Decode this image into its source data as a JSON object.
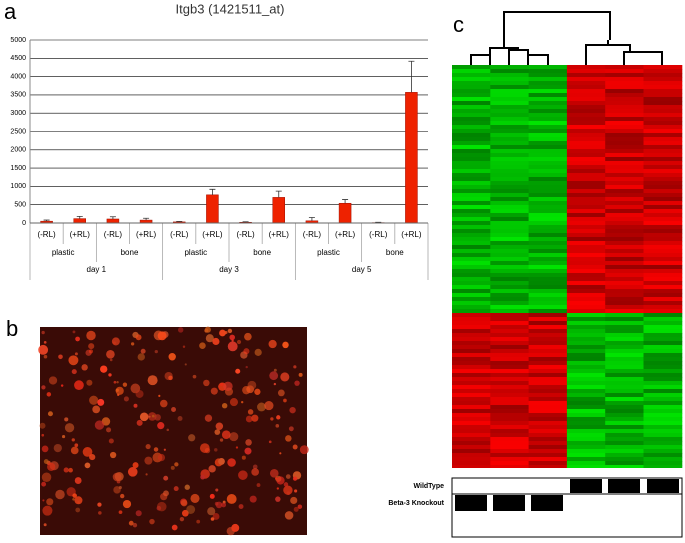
{
  "chart_data": {
    "type": "bar",
    "title": "Itgb3 (1421511_at)",
    "categories": [
      "(-RL)",
      "(+RL)",
      "(-RL)",
      "(+RL)",
      "(-RL)",
      "(+RL)",
      "(-RL)",
      "(+RL)",
      "(-RL)",
      "(+RL)",
      "(-RL)",
      "(+RL)"
    ],
    "subgroups": [
      "plastic",
      "bone",
      "plastic",
      "bone",
      "plastic",
      "bone"
    ],
    "groups": [
      "day 1",
      "day 3",
      "day 5"
    ],
    "values": [
      50,
      120,
      110,
      80,
      30,
      770,
      20,
      700,
      60,
      540,
      10,
      3570
    ],
    "errors": [
      30,
      60,
      60,
      50,
      15,
      150,
      15,
      170,
      90,
      100,
      10,
      850
    ],
    "color": "#ee2200",
    "ylim": [
      0,
      5000
    ],
    "yticks": [
      0,
      500,
      1000,
      1500,
      2000,
      2500,
      3000,
      3500,
      4000,
      4500,
      5000
    ],
    "grid": true
  },
  "figure": {
    "panel_labels": [
      "a",
      "b",
      "c"
    ],
    "heatmap_legend": [
      "WildType",
      "Beta-3 Knockout"
    ]
  }
}
